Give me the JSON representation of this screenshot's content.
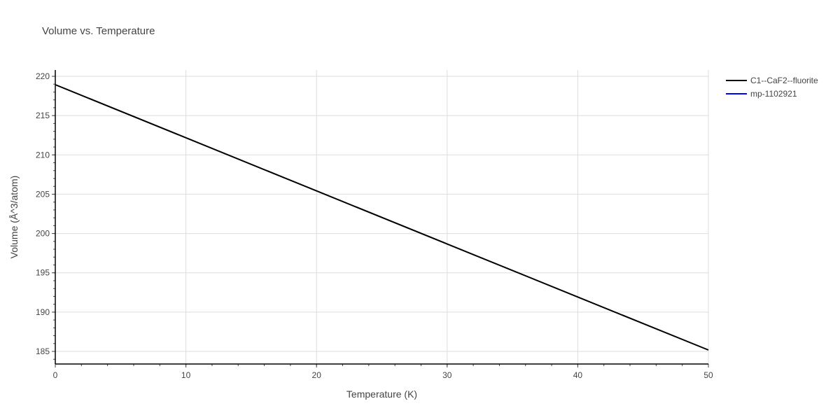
{
  "title": "Volume vs. Temperature",
  "legend": [
    {
      "label": "C1--CaF2--fluorite",
      "color": "#000000"
    },
    {
      "label": "mp-1102921",
      "color": "#0000ff"
    }
  ],
  "chart_data": {
    "type": "line",
    "title": "Volume vs. Temperature",
    "xlabel": "Temperature (K)",
    "ylabel": "Volume (Å^3/atom)",
    "xlim": [
      0,
      50
    ],
    "ylim": [
      183.4,
      220.8
    ],
    "xticks": [
      0,
      10,
      20,
      30,
      40,
      50
    ],
    "yticks": [
      185,
      190,
      195,
      200,
      205,
      210,
      215,
      220
    ],
    "grid": true,
    "legend_position": "top-right outside",
    "series": [
      {
        "name": "C1--CaF2--fluorite",
        "color": "#000000",
        "x": [
          0,
          10,
          20,
          30,
          40,
          50
        ],
        "y": [
          218.93,
          212.18,
          205.42,
          198.67,
          191.92,
          185.18
        ]
      },
      {
        "name": "mp-1102921",
        "color": "#0000ff",
        "x": [],
        "y": []
      }
    ]
  }
}
